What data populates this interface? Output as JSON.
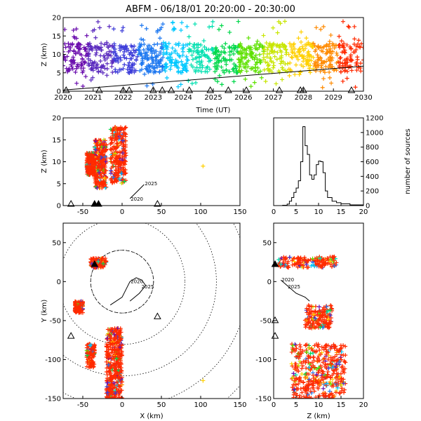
{
  "title": "ABFM - 06/18/01 20:20:00 - 20:30:00",
  "colors": {
    "colormap": [
      "#6a0dad",
      "#5b2bbf",
      "#3b3bd9",
      "#1e78f0",
      "#00c8ff",
      "#00e0b0",
      "#00d84a",
      "#5ee100",
      "#c8e600",
      "#ffd000",
      "#ff8a00",
      "#ff2a00"
    ],
    "axes": "#000000",
    "background": "#ffffff"
  },
  "chart_data": [
    {
      "id": "time-height",
      "type": "scatter",
      "xlabel": "Time (UT)",
      "ylabel": "Z (km)",
      "xlim": [
        2020,
        2030
      ],
      "ylim": [
        0,
        20
      ],
      "xticks": [
        "2020",
        "2021",
        "2022",
        "2023",
        "2024",
        "2025",
        "2026",
        "2027",
        "2028",
        "2029",
        "2030"
      ],
      "yticks": [
        "0",
        "5",
        "10",
        "15",
        "20"
      ],
      "marker": "+",
      "color_by": "time",
      "source_band_z_km": [
        5,
        13
      ],
      "trend_line": {
        "x": [
          2020,
          2030
        ],
        "y": [
          0.3,
          6.8
        ]
      },
      "station_markers_x": [
        2020.1,
        2021.2,
        2022.0,
        2022.2,
        2023.0,
        2023.3,
        2023.6,
        2024.2,
        2024.9,
        2025.5,
        2026.1,
        2027.2,
        2027.9,
        2028.0,
        2029.6
      ]
    },
    {
      "id": "x-z",
      "type": "scatter",
      "xlabel": "",
      "ylabel": "Z (km)",
      "xlim": [
        -75,
        150
      ],
      "ylim": [
        0,
        20
      ],
      "xticks": [
        "-50",
        "0",
        "50",
        "100",
        "150"
      ],
      "yticks": [
        "0",
        "5",
        "10",
        "15",
        "20"
      ],
      "clusters": [
        {
          "x_range": [
            -35,
            -20
          ],
          "z_range": [
            4,
            15
          ],
          "color": "#ff2a00"
        },
        {
          "x_range": [
            -15,
            5
          ],
          "z_range": [
            5,
            18
          ],
          "color": "#ff2a00"
        },
        {
          "x_range": [
            -45,
            -35
          ],
          "z_range": [
            7,
            12
          ],
          "color": "#ff2a00"
        }
      ],
      "outlier": {
        "x": 103,
        "z": 9
      },
      "track": {
        "x": [
          10,
          18,
          28
        ],
        "z": [
          1.6,
          3.0,
          4.8
        ],
        "labels": [
          "2020",
          "2025"
        ]
      },
      "station_markers_x": [
        -65,
        -35,
        -30,
        45
      ]
    },
    {
      "id": "altitude-histogram",
      "type": "line",
      "xlabel": "",
      "ylabel": "number of sources",
      "xlim": [
        0,
        20
      ],
      "ylim": [
        0,
        1200
      ],
      "xticks": [
        "0",
        "5",
        "10",
        "15",
        "20"
      ],
      "yticks": [
        "0",
        "200",
        "400",
        "600",
        "800",
        "1000",
        "1200"
      ],
      "x": [
        0,
        1,
        2,
        3,
        3.5,
        4,
        4.5,
        5,
        5.5,
        6,
        6.5,
        7,
        7.5,
        8,
        8.5,
        9,
        9.5,
        10,
        10.5,
        11,
        11.5,
        12,
        13,
        14,
        15,
        17,
        20
      ],
      "y": [
        0,
        0,
        5,
        20,
        60,
        110,
        180,
        240,
        340,
        600,
        1080,
        820,
        700,
        420,
        360,
        420,
        560,
        610,
        600,
        450,
        200,
        110,
        60,
        40,
        25,
        10,
        0
      ]
    },
    {
      "id": "plan-view",
      "type": "scatter",
      "xlabel": "X (km)",
      "ylabel": "Y (km)",
      "xlim": [
        -75,
        150
      ],
      "ylim": [
        -150,
        75
      ],
      "xticks": [
        "-50",
        "0",
        "50",
        "100",
        "150"
      ],
      "yticks": [
        "-150",
        "-100",
        "-50",
        "0",
        "50"
      ],
      "range_rings_km": [
        40,
        80,
        120,
        160,
        200
      ],
      "clusters": [
        {
          "x_range": [
            -40,
            -20
          ],
          "y_range": [
            18,
            30
          ],
          "color": "#ff2a00"
        },
        {
          "x_range": [
            -20,
            0
          ],
          "y_range": [
            -150,
            -60
          ],
          "color": "#ff2a00"
        },
        {
          "x_range": [
            -45,
            -35
          ],
          "y_range": [
            -110,
            -80
          ],
          "color": "#ff2a00"
        },
        {
          "x_range": [
            -60,
            -50
          ],
          "y_range": [
            -40,
            -25
          ],
          "color": "#ff2a00"
        }
      ],
      "outlier": {
        "x": 103,
        "y": -127
      },
      "track": {
        "x": [
          -15,
          0,
          10,
          18,
          25,
          30,
          22,
          10
        ],
        "y": [
          -30,
          -20,
          0,
          5,
          2,
          -5,
          -15,
          -25
        ],
        "labels": [
          "2020",
          "2025"
        ]
      },
      "station_markers": [
        {
          "x": -65,
          "y": -70
        },
        {
          "x": 45,
          "y": -45
        },
        {
          "x": -35,
          "y": 22
        }
      ]
    },
    {
      "id": "z-y",
      "type": "scatter",
      "xlabel": "Z (km)",
      "ylabel": "",
      "xlim": [
        0,
        20
      ],
      "ylim": [
        -150,
        75
      ],
      "xticks": [
        "0",
        "5",
        "10",
        "15",
        "20"
      ],
      "yticks": [
        "-150",
        "-100",
        "-50",
        "0",
        "50"
      ],
      "clusters": [
        {
          "z_range": [
            1,
            14
          ],
          "y_range": [
            18,
            32
          ],
          "color": "#ff2a00"
        },
        {
          "z_range": [
            4,
            16
          ],
          "y_range": [
            -150,
            -80
          ],
          "color": "#ff2a00"
        },
        {
          "z_range": [
            7,
            13
          ],
          "y_range": [
            -60,
            -30
          ],
          "color": "#ff2a00"
        }
      ],
      "track": {
        "z": [
          1.6,
          3,
          5,
          7,
          8
        ],
        "y": [
          2,
          -5,
          -15,
          -20,
          -25
        ],
        "labels": [
          "2020",
          "2025"
        ]
      },
      "station_markers_y": [
        22,
        -50,
        -70
      ]
    }
  ]
}
